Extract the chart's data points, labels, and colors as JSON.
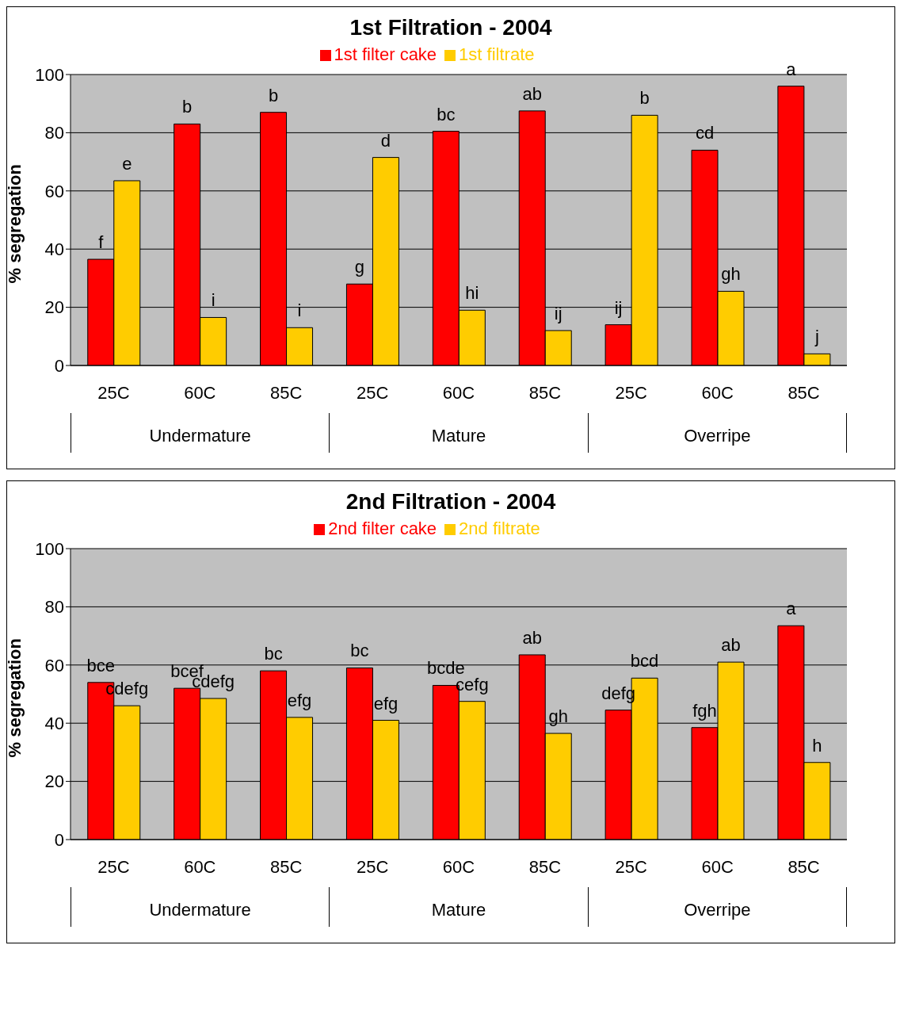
{
  "chart_data": [
    {
      "type": "bar",
      "title": "1st Filtration - 2004",
      "ylabel": "% segregation",
      "categories": [
        "25C",
        "60C",
        "85C",
        "25C",
        "60C",
        "85C",
        "25C",
        "60C",
        "85C"
      ],
      "annotations": [
        "Undermature",
        "Mature",
        "Overripe"
      ],
      "ylim": [
        0,
        100
      ],
      "yticks": [
        0,
        20,
        40,
        60,
        80,
        100
      ],
      "grid": "y",
      "legend": "top",
      "series": [
        {
          "name": "1st filter cake",
          "color": "#ff0000",
          "values": [
            36.5,
            83,
            87,
            28,
            80.5,
            87.5,
            14,
            74,
            96
          ],
          "value_labels": [
            "f",
            "b",
            "b",
            "g",
            "bc",
            "ab",
            "ij",
            "cd",
            "a"
          ]
        },
        {
          "name": "1st filtrate",
          "color": "#ffcc00",
          "values": [
            63.5,
            16.5,
            13,
            71.5,
            19,
            12,
            86,
            25.5,
            4
          ],
          "value_labels": [
            "e",
            "i",
            "i",
            "d",
            "hi",
            "ij",
            "b",
            "gh",
            "j"
          ]
        }
      ]
    },
    {
      "type": "bar",
      "title": "2nd Filtration - 2004",
      "ylabel": "% segregation",
      "categories": [
        "25C",
        "60C",
        "85C",
        "25C",
        "60C",
        "85C",
        "25C",
        "60C",
        "85C"
      ],
      "annotations": [
        "Undermature",
        "Mature",
        "Overripe"
      ],
      "ylim": [
        0,
        100
      ],
      "yticks": [
        0,
        20,
        40,
        60,
        80,
        100
      ],
      "grid": "y",
      "legend": "top",
      "series": [
        {
          "name": "2nd filter cake",
          "color": "#ff0000",
          "values": [
            54,
            52,
            58,
            59,
            53,
            63.5,
            44.5,
            38.5,
            73.5
          ],
          "value_labels": [
            "bce",
            "bcef",
            "bc",
            "bc",
            "bcde",
            "ab",
            "defg",
            "fgh",
            "a"
          ]
        },
        {
          "name": "2nd filtrate",
          "color": "#ffcc00",
          "values": [
            46,
            48.5,
            42,
            41,
            47.5,
            36.5,
            55.5,
            61,
            26.5
          ],
          "value_labels": [
            "cdefg",
            "cdefg",
            "efg",
            "efg",
            "cefg",
            "gh",
            "bcd",
            "ab",
            "h"
          ]
        }
      ]
    }
  ]
}
